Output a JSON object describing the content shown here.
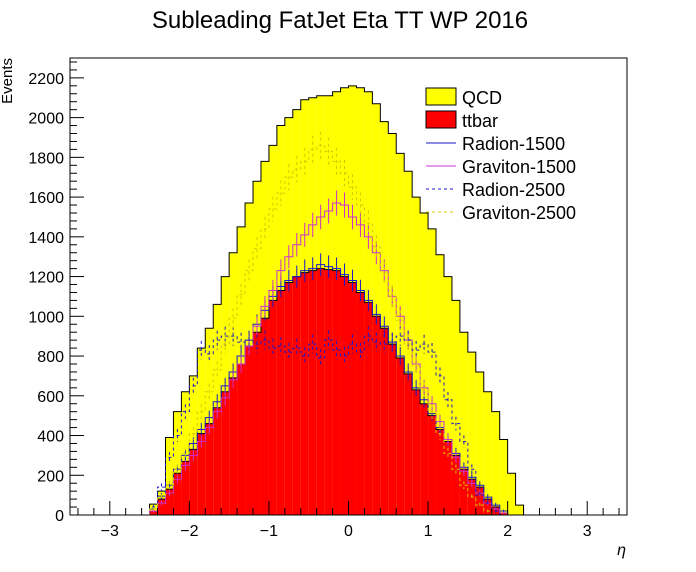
{
  "chart_data": {
    "type": "histogram",
    "title": "Subleading FatJet Eta TT WP 2016",
    "xlabel": "η",
    "ylabel": "Events",
    "xlim": [
      -3.5,
      3.5
    ],
    "ylim": [
      0,
      2300
    ],
    "xticks": [
      -3,
      -2,
      -1,
      0,
      1,
      2,
      3
    ],
    "xtick_labels": [
      "−3",
      "−2",
      "−1",
      "0",
      "1",
      "2",
      "3"
    ],
    "yticks": [
      0,
      200,
      400,
      600,
      800,
      1000,
      1200,
      1400,
      1600,
      1800,
      2000,
      2200
    ],
    "ytick_labels": [
      "0",
      "200",
      "400",
      "600",
      "800",
      "1000",
      "1200",
      "1400",
      "1600",
      "1800",
      "2000",
      "2200"
    ],
    "bin_width": 0.1,
    "x_start": -3.5,
    "legend_position": "top-right",
    "series": [
      {
        "name": "QCD",
        "style": "filled",
        "color": "#ffff00",
        "values": [
          0,
          0,
          0,
          0,
          0,
          0,
          0,
          0,
          0,
          0,
          55,
          120,
          390,
          520,
          620,
          700,
          840,
          940,
          1060,
          1200,
          1320,
          1450,
          1570,
          1680,
          1780,
          1860,
          1960,
          2000,
          2040,
          2090,
          2100,
          2110,
          2110,
          2130,
          2150,
          2160,
          2150,
          2130,
          2070,
          1980,
          1920,
          1820,
          1730,
          1600,
          1520,
          1440,
          1310,
          1200,
          1080,
          920,
          820,
          720,
          620,
          520,
          380,
          210,
          50,
          0,
          0,
          0,
          0,
          0,
          0,
          0,
          0,
          0,
          0,
          0,
          0,
          0
        ]
      },
      {
        "name": "ttbar",
        "style": "filled",
        "color": "#ff0000",
        "values": [
          0,
          0,
          0,
          0,
          0,
          0,
          0,
          0,
          0,
          0,
          20,
          80,
          130,
          210,
          270,
          330,
          410,
          460,
          540,
          620,
          690,
          760,
          850,
          920,
          990,
          1080,
          1130,
          1170,
          1200,
          1220,
          1230,
          1240,
          1235,
          1230,
          1200,
          1170,
          1120,
          1070,
          1000,
          940,
          860,
          790,
          710,
          630,
          560,
          500,
          430,
          370,
          300,
          230,
          180,
          140,
          80,
          40,
          10,
          0,
          0,
          0,
          0,
          0,
          0,
          0,
          0,
          0,
          0,
          0,
          0,
          0,
          0,
          0
        ]
      },
      {
        "name": "Radion-1500",
        "style": "step",
        "color": "#1a1acc",
        "values": [
          0,
          0,
          0,
          0,
          0,
          0,
          0,
          0,
          0,
          0,
          30,
          95,
          150,
          230,
          300,
          360,
          430,
          490,
          570,
          650,
          720,
          800,
          880,
          960,
          1030,
          1100,
          1150,
          1180,
          1200,
          1230,
          1240,
          1260,
          1250,
          1240,
          1210,
          1180,
          1130,
          1080,
          1010,
          950,
          870,
          800,
          720,
          640,
          580,
          510,
          440,
          380,
          310,
          240,
          190,
          150,
          90,
          50,
          20,
          0,
          0,
          0,
          0,
          0,
          0,
          0,
          0,
          0,
          0,
          0,
          0,
          0,
          0,
          0
        ]
      },
      {
        "name": "Graviton-1500",
        "style": "step",
        "color": "#cc33cc",
        "values": [
          0,
          0,
          0,
          0,
          0,
          0,
          0,
          0,
          0,
          0,
          20,
          60,
          110,
          180,
          250,
          300,
          370,
          440,
          520,
          590,
          680,
          760,
          850,
          950,
          1050,
          1130,
          1230,
          1300,
          1360,
          1410,
          1460,
          1500,
          1530,
          1570,
          1560,
          1500,
          1460,
          1400,
          1320,
          1230,
          1100,
          1000,
          880,
          760,
          640,
          560,
          470,
          380,
          290,
          220,
          160,
          110,
          60,
          30,
          10,
          0,
          0,
          0,
          0,
          0,
          0,
          0,
          0,
          0,
          0,
          0,
          0,
          0,
          0,
          0
        ]
      },
      {
        "name": "Radion-2500",
        "style": "dashed",
        "color": "#1a1acc",
        "values": [
          0,
          0,
          0,
          0,
          0,
          0,
          0,
          0,
          0,
          0,
          40,
          140,
          290,
          400,
          520,
          650,
          830,
          810,
          880,
          900,
          900,
          870,
          880,
          860,
          880,
          840,
          850,
          820,
          840,
          800,
          860,
          790,
          880,
          830,
          800,
          860,
          820,
          900,
          870,
          860,
          870,
          900,
          880,
          830,
          860,
          820,
          700,
          580,
          460,
          370,
          230,
          100,
          60,
          20,
          0,
          0,
          0,
          0,
          0,
          0,
          0,
          0,
          0,
          0,
          0,
          0,
          0,
          0,
          0,
          0
        ]
      },
      {
        "name": "Graviton-2500",
        "style": "dashed",
        "color": "#d4c800",
        "values": [
          0,
          0,
          0,
          0,
          0,
          0,
          0,
          0,
          0,
          0,
          30,
          90,
          150,
          230,
          310,
          410,
          520,
          620,
          730,
          860,
          990,
          1110,
          1230,
          1340,
          1440,
          1540,
          1620,
          1700,
          1740,
          1780,
          1840,
          1860,
          1830,
          1780,
          1720,
          1650,
          1560,
          1470,
          1350,
          1220,
          1100,
          980,
          860,
          750,
          630,
          520,
          410,
          310,
          230,
          150,
          90,
          50,
          20,
          0,
          0,
          0,
          0,
          0,
          0,
          0,
          0,
          0,
          0,
          0,
          0,
          0,
          0,
          0,
          0,
          0
        ]
      }
    ]
  }
}
